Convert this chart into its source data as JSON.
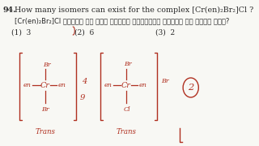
{
  "bg_color": "#f8f8f4",
  "question_number": "94.",
  "question_en": "How many isomers can exist for the complex [Cr(en)₂Br₂]Cl ?",
  "question_hi": "[Cr(en)₂Br₂]Cl संकुल के लिए कितने समावयवी मौजूद हो सकते हैं?",
  "opt1": "(1)  3",
  "opt2": "(2)  6",
  "opt3": "(3)  2",
  "text_color": "#2a2a2a",
  "red_color": "#b03020",
  "fs_q": 6.8,
  "fs_hi": 6.0,
  "fs_opt": 6.5,
  "fs_struct": 5.8,
  "fs_label": 6.2
}
